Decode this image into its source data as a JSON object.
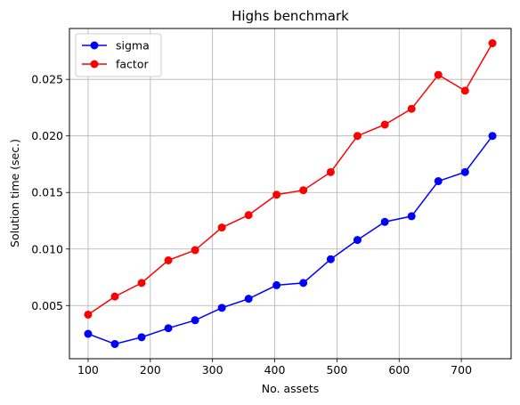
{
  "chart_data": {
    "type": "line",
    "title": "Highs benchmark",
    "xlabel": "No. assets",
    "ylabel": "Solution time (sec.)",
    "xlim": [
      70,
      780
    ],
    "ylim": [
      0.0003,
      0.0295
    ],
    "xticks": [
      100,
      200,
      300,
      400,
      500,
      600,
      700
    ],
    "yticks": [
      0.005,
      0.01,
      0.015,
      0.02,
      0.025
    ],
    "ytick_labels": [
      "0.005",
      "0.010",
      "0.015",
      "0.020",
      "0.025"
    ],
    "grid": true,
    "legend_position": "upper-left",
    "x": [
      100,
      143,
      186,
      229,
      272,
      315,
      358,
      403,
      446,
      490,
      533,
      577,
      620,
      663,
      706,
      750
    ],
    "series": [
      {
        "name": "sigma",
        "color": "#0000ff",
        "values": [
          0.0025,
          0.0016,
          0.0022,
          0.003,
          0.0037,
          0.0048,
          0.0056,
          0.0068,
          0.007,
          0.0091,
          0.0108,
          0.0124,
          0.0129,
          0.016,
          0.0168,
          0.02
        ]
      },
      {
        "name": "factor",
        "color": "#ff0000",
        "values": [
          0.0042,
          0.0058,
          0.007,
          0.009,
          0.0099,
          0.0119,
          0.013,
          0.0148,
          0.0152,
          0.0168,
          0.02,
          0.021,
          0.0224,
          0.0254,
          0.024,
          0.0282
        ]
      }
    ]
  }
}
